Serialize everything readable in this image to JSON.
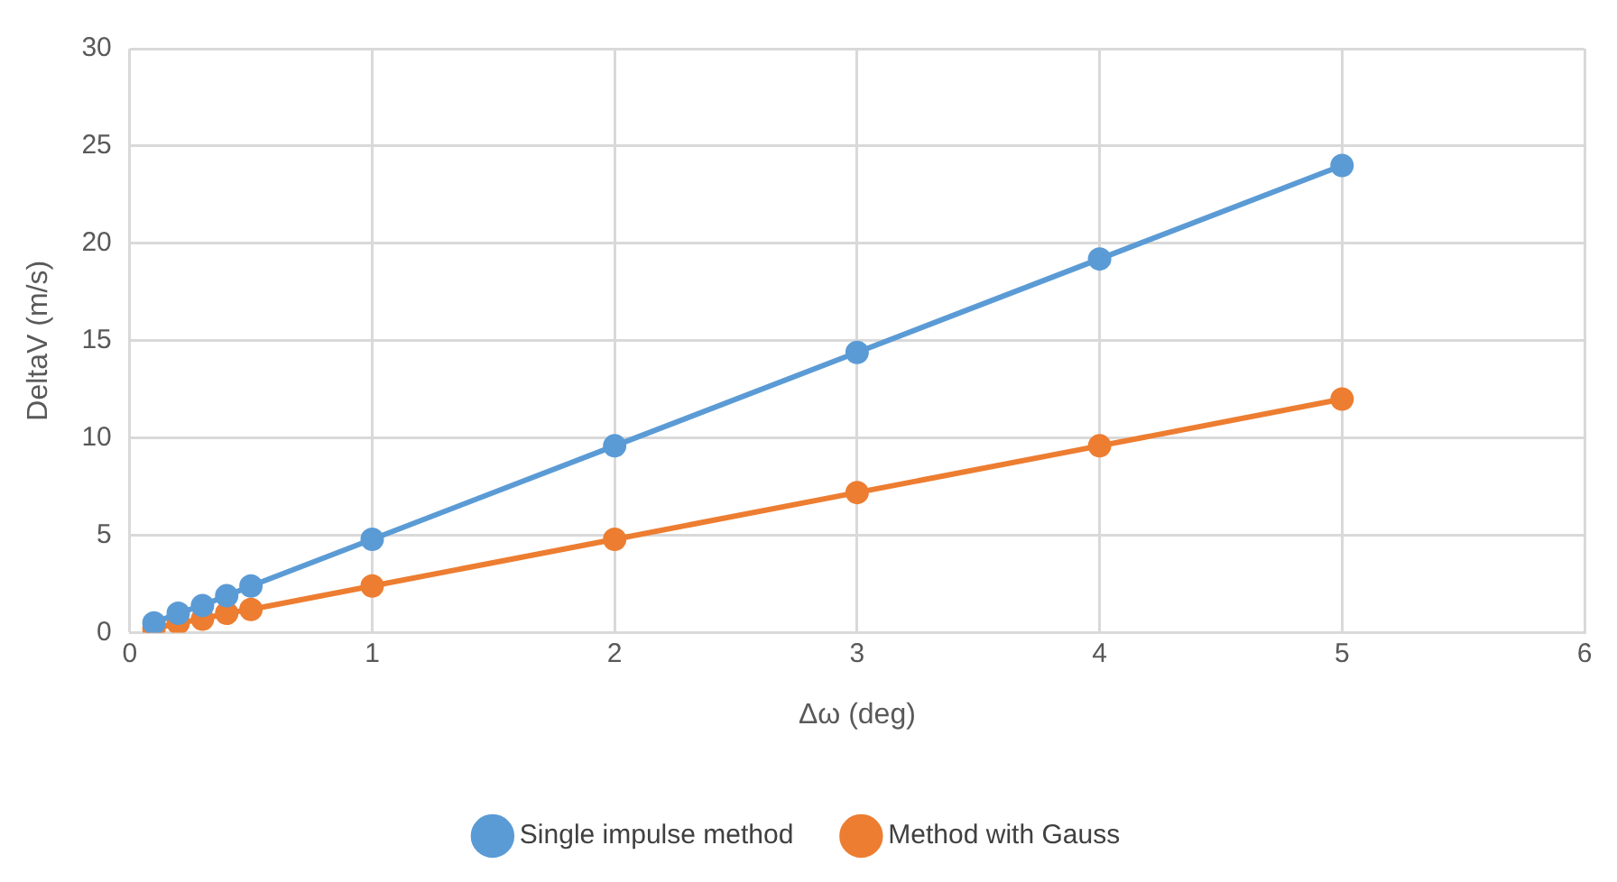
{
  "chart_data": {
    "type": "line",
    "xlabel": "Δω (deg)",
    "ylabel": "DeltaV (m/s)",
    "x": [
      0.1,
      0.2,
      0.3,
      0.4,
      0.5,
      1,
      2,
      3,
      4,
      5
    ],
    "series": [
      {
        "name": "Single impulse method",
        "color": "#5b9bd5",
        "values": [
          0.5,
          1,
          1.4,
          1.9,
          2.4,
          4.8,
          9.6,
          14.4,
          19.2,
          24
        ]
      },
      {
        "name": "Method with Gauss",
        "color": "#ed7d31",
        "values": [
          0.2,
          0.5,
          0.7,
          1,
          1.2,
          2.4,
          4.8,
          7.2,
          9.6,
          12
        ]
      }
    ],
    "xlim": [
      0,
      6
    ],
    "xticks": [
      0,
      1,
      2,
      3,
      4,
      5,
      6
    ],
    "ylim": [
      0,
      30
    ],
    "yticks": [
      0,
      5,
      10,
      15,
      20,
      25,
      30
    ],
    "grid": true,
    "legend": "bottom",
    "marker": "circle",
    "line_style": "solid"
  }
}
